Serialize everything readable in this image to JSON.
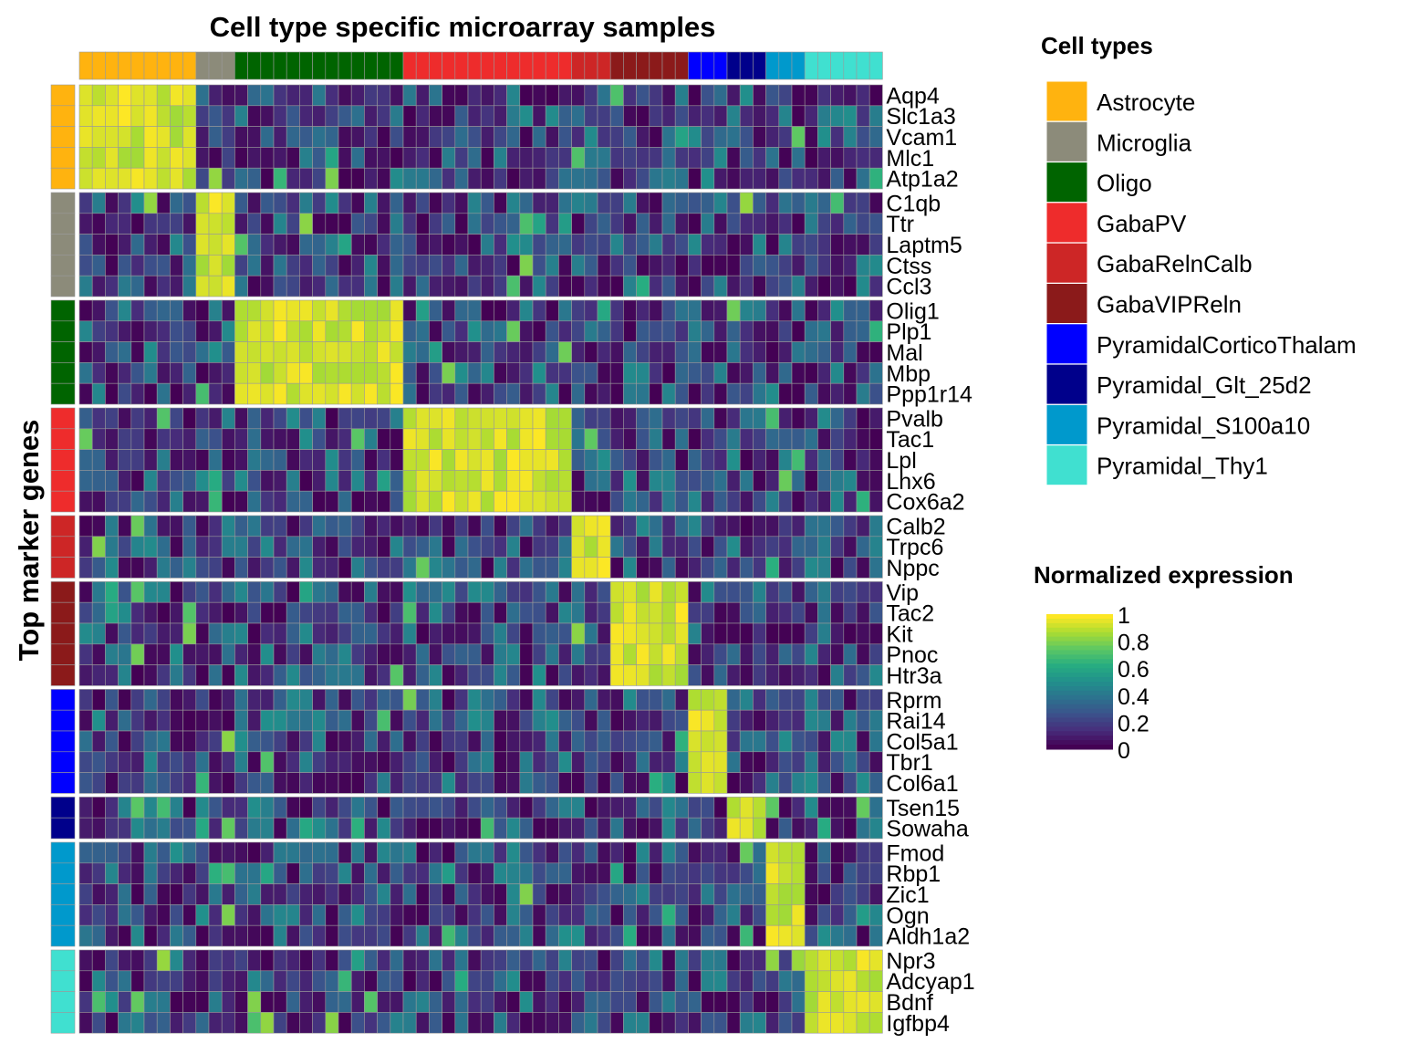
{
  "chart_data": {
    "type": "heatmap",
    "title": "Cell type specific microarray samples",
    "ylabel": "Top marker genes",
    "xlabel": "",
    "cell_type_legend": {
      "title": "Cell types",
      "items": [
        {
          "name": "Astrocyte",
          "color": "#FFB30F"
        },
        {
          "name": "Microglia",
          "color": "#8C8B7A"
        },
        {
          "name": "Oligo",
          "color": "#006400"
        },
        {
          "name": "GabaPV",
          "color": "#EE2C2C"
        },
        {
          "name": "GabaRelnCalb",
          "color": "#CD2626"
        },
        {
          "name": "GabaVIPReln",
          "color": "#8B1A1A"
        },
        {
          "name": "PyramidalCorticoThalam",
          "color": "#0000FF"
        },
        {
          "name": "Pyramidal_Glt_25d2",
          "color": "#00008B"
        },
        {
          "name": "Pyramidal_S100a10",
          "color": "#0099CC"
        },
        {
          "name": "Pyramidal_Thy1",
          "color": "#40E0D0"
        }
      ]
    },
    "color_legend": {
      "title": "Normalized expression",
      "ticks": [
        "1",
        "0.8",
        "0.6",
        "0.4",
        "0.2",
        "0"
      ],
      "range": [
        0,
        1
      ],
      "palette": [
        "#440154",
        "#472D7B",
        "#3B528B",
        "#2C728E",
        "#21908C",
        "#27AD81",
        "#5DC863",
        "#AADC32",
        "#FDE725"
      ]
    },
    "sample_groups": [
      {
        "type": "Astrocyte",
        "n": 9
      },
      {
        "type": "Microglia",
        "n": 3
      },
      {
        "type": "Oligo",
        "n": 13
      },
      {
        "type": "GabaPV",
        "n": 13
      },
      {
        "type": "GabaRelnCalb",
        "n": 3
      },
      {
        "type": "GabaVIPReln",
        "n": 6
      },
      {
        "type": "PyramidalCorticoThalam",
        "n": 3
      },
      {
        "type": "Pyramidal_Glt_25d2",
        "n": 3
      },
      {
        "type": "Pyramidal_S100a10",
        "n": 3
      },
      {
        "type": "Pyramidal_Thy1",
        "n": 6
      }
    ],
    "gene_groups": [
      {
        "type": "Astrocyte",
        "genes": [
          "Aqp4",
          "Slc1a3",
          "Vcam1",
          "Mlc1",
          "Atp1a2"
        ]
      },
      {
        "type": "Microglia",
        "genes": [
          "C1qb",
          "Ttr",
          "Laptm5",
          "Ctss",
          "Ccl3"
        ]
      },
      {
        "type": "Oligo",
        "genes": [
          "Olig1",
          "Plp1",
          "Mal",
          "Mbp",
          "Ppp1r14"
        ]
      },
      {
        "type": "GabaPV",
        "genes": [
          "Pvalb",
          "Tac1",
          "Lpl",
          "Lhx6",
          "Cox6a2"
        ]
      },
      {
        "type": "GabaRelnCalb",
        "genes": [
          "Calb2",
          "Trpc6",
          "Nppc"
        ]
      },
      {
        "type": "GabaVIPReln",
        "genes": [
          "Vip",
          "Tac2",
          "Kit",
          "Pnoc",
          "Htr3a"
        ]
      },
      {
        "type": "PyramidalCorticoThalam",
        "genes": [
          "Rprm",
          "Rai14",
          "Col5a1",
          "Tbr1",
          "Col6a1"
        ]
      },
      {
        "type": "Pyramidal_Glt_25d2",
        "genes": [
          "Tsen15",
          "Sowaha"
        ]
      },
      {
        "type": "Pyramidal_S100a10",
        "genes": [
          "Fmod",
          "Rbp1",
          "Zic1",
          "Ogn",
          "Aldh1a2"
        ]
      },
      {
        "type": "Pyramidal_Thy1",
        "genes": [
          "Npr3",
          "Adcyap1",
          "Bdnf",
          "Igfbp4"
        ]
      }
    ]
  }
}
